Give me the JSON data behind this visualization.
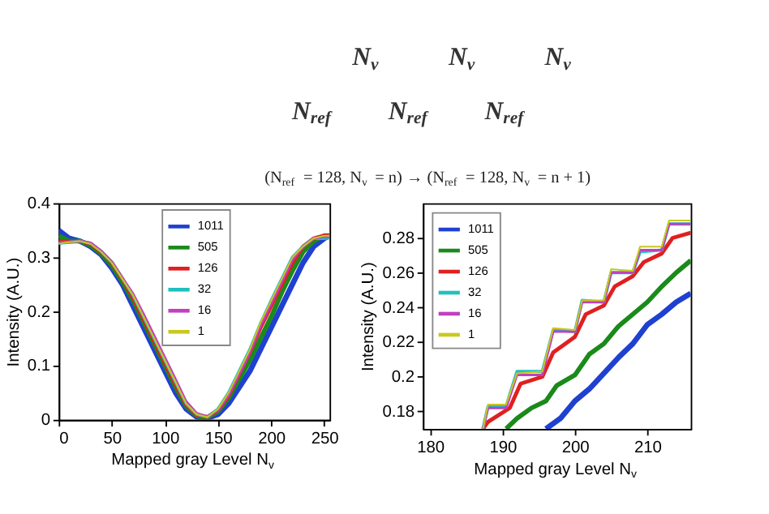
{
  "chart_data": [
    {
      "type": "other",
      "annotations": [
        "N$_{v}$",
        "N$_{v}$",
        "N$_{v}$",
        "N$_{ref}$",
        "N$_{ref}$",
        "N$_{ref}$",
        "(N$_{ref}$ = 128, N$_{v}$ = n) → (N$_{ref}$ = 128, N$_{v}$ = n + 1)"
      ]
    },
    {
      "type": "line",
      "xlabel": "Mapped gray Level N$_{v}$",
      "ylabel": "Intensity (A.U.)",
      "xlim": [
        0,
        255
      ],
      "ylim": [
        0,
        0.4
      ],
      "xticks": [
        0,
        50,
        100,
        150,
        200,
        250
      ],
      "yticks": [
        0,
        0.1,
        0.2,
        0.3,
        0.4
      ],
      "grid": false,
      "legend": "top",
      "marker": "none",
      "line_style": "solid",
      "x": [
        0,
        10,
        20,
        30,
        40,
        50,
        60,
        70,
        80,
        90,
        100,
        110,
        120,
        130,
        140,
        150,
        160,
        170,
        180,
        190,
        200,
        210,
        220,
        230,
        240,
        250,
        255
      ],
      "series": [
        {
          "name": "1011",
          "color": "#2040d0",
          "values": [
            0.35,
            0.335,
            0.33,
            0.32,
            0.305,
            0.28,
            0.25,
            0.21,
            0.17,
            0.13,
            0.09,
            0.05,
            0.02,
            0.005,
            0.003,
            0.01,
            0.03,
            0.06,
            0.09,
            0.13,
            0.17,
            0.21,
            0.25,
            0.29,
            0.32,
            0.335,
            0.34
          ]
        },
        {
          "name": "505",
          "color": "#1a8a1a",
          "values": [
            0.34,
            0.33,
            0.33,
            0.322,
            0.307,
            0.285,
            0.255,
            0.22,
            0.18,
            0.14,
            0.1,
            0.06,
            0.025,
            0.007,
            0.004,
            0.015,
            0.04,
            0.075,
            0.11,
            0.15,
            0.19,
            0.235,
            0.275,
            0.31,
            0.33,
            0.34,
            0.34
          ]
        },
        {
          "name": "126",
          "color": "#e02020",
          "values": [
            0.33,
            0.33,
            0.33,
            0.325,
            0.31,
            0.29,
            0.26,
            0.225,
            0.185,
            0.145,
            0.105,
            0.065,
            0.028,
            0.008,
            0.005,
            0.018,
            0.045,
            0.085,
            0.125,
            0.17,
            0.21,
            0.25,
            0.29,
            0.32,
            0.335,
            0.34,
            0.34
          ]
        },
        {
          "name": "32",
          "color": "#20c0c0",
          "values": [
            0.326,
            0.328,
            0.33,
            0.326,
            0.311,
            0.291,
            0.261,
            0.23,
            0.19,
            0.15,
            0.11,
            0.07,
            0.03,
            0.01,
            0.005,
            0.02,
            0.05,
            0.09,
            0.13,
            0.178,
            0.22,
            0.26,
            0.3,
            0.32,
            0.335,
            0.335,
            0.336
          ]
        },
        {
          "name": "16",
          "color": "#c040c0",
          "values": [
            0.326,
            0.328,
            0.33,
            0.327,
            0.312,
            0.292,
            0.262,
            0.233,
            0.195,
            0.155,
            0.115,
            0.075,
            0.034,
            0.012,
            0.006,
            0.017,
            0.045,
            0.084,
            0.124,
            0.173,
            0.214,
            0.254,
            0.295,
            0.32,
            0.335,
            0.338,
            0.338
          ]
        },
        {
          "name": "1",
          "color": "#c8c820",
          "values": [
            0.325,
            0.328,
            0.33,
            0.325,
            0.31,
            0.29,
            0.26,
            0.23,
            0.19,
            0.15,
            0.11,
            0.07,
            0.03,
            0.01,
            0.005,
            0.02,
            0.05,
            0.09,
            0.13,
            0.18,
            0.22,
            0.26,
            0.3,
            0.32,
            0.335,
            0.34,
            0.34
          ]
        }
      ]
    },
    {
      "type": "line",
      "xlabel": "Mapped gray Level N$_{v}$",
      "ylabel": "Intensity (A.U.)",
      "xlim": [
        179,
        216
      ],
      "ylim": [
        0.17,
        0.3
      ],
      "xticks": [
        180,
        190,
        200,
        210
      ],
      "yticks": [
        0.18,
        0.2,
        0.22,
        0.24,
        0.26,
        0.28
      ],
      "grid": false,
      "legend": "top left",
      "marker": "none",
      "line_style": "solid",
      "series": [
        {
          "name": "1011",
          "color": "#2040d0",
          "x": [
            196,
            198,
            200,
            202,
            204,
            206,
            208,
            210,
            212,
            214,
            216
          ],
          "values": [
            0.17,
            0.176,
            0.186,
            0.193,
            0.202,
            0.211,
            0.219,
            0.23,
            0.236,
            0.243,
            0.248
          ]
        },
        {
          "name": "505",
          "color": "#1a8a1a",
          "x": [
            190.5,
            192,
            194,
            196,
            197.5,
            200,
            202,
            204,
            206,
            208,
            210,
            212,
            214,
            216
          ],
          "values": [
            0.17,
            0.176,
            0.182,
            0.186,
            0.195,
            0.201,
            0.213,
            0.219,
            0.229,
            0.236,
            0.243,
            0.252,
            0.26,
            0.267
          ]
        },
        {
          "name": "126",
          "color": "#e02020",
          "x": [
            187.3,
            188,
            191,
            192.5,
            195.5,
            197,
            200,
            201.5,
            204,
            205.5,
            208,
            209.5,
            212,
            213.5,
            216
          ],
          "values": [
            0.17,
            0.174,
            0.182,
            0.196,
            0.2,
            0.214,
            0.223,
            0.236,
            0.241,
            0.252,
            0.258,
            0.266,
            0.271,
            0.28,
            0.283
          ]
        },
        {
          "name": "32",
          "color": "#20c0c0",
          "x": [
            187.3,
            188,
            190.5,
            192,
            195.5,
            197,
            200,
            201,
            204,
            205,
            208,
            209,
            212,
            213,
            216
          ],
          "values": [
            0.17,
            0.183,
            0.183,
            0.203,
            0.203,
            0.227,
            0.226,
            0.244,
            0.243,
            0.26,
            0.26,
            0.272,
            0.273,
            0.288,
            0.288
          ]
        },
        {
          "name": "16",
          "color": "#c040c0",
          "x": [
            187.3,
            188,
            190.5,
            192,
            195.5,
            197,
            200,
            201,
            204,
            205,
            208,
            209,
            212,
            213,
            216
          ],
          "values": [
            0.17,
            0.182,
            0.182,
            0.201,
            0.201,
            0.226,
            0.226,
            0.243,
            0.243,
            0.26,
            0.26,
            0.273,
            0.273,
            0.288,
            0.288
          ]
        },
        {
          "name": "1",
          "color": "#c8c820",
          "x": [
            187.3,
            188,
            190.5,
            192,
            195.5,
            197,
            200,
            201,
            204,
            205,
            208,
            209,
            212,
            213,
            216
          ],
          "values": [
            0.17,
            0.184,
            0.184,
            0.202,
            0.203,
            0.228,
            0.227,
            0.244,
            0.244,
            0.262,
            0.261,
            0.275,
            0.275,
            0.29,
            0.29
          ]
        }
      ]
    }
  ]
}
